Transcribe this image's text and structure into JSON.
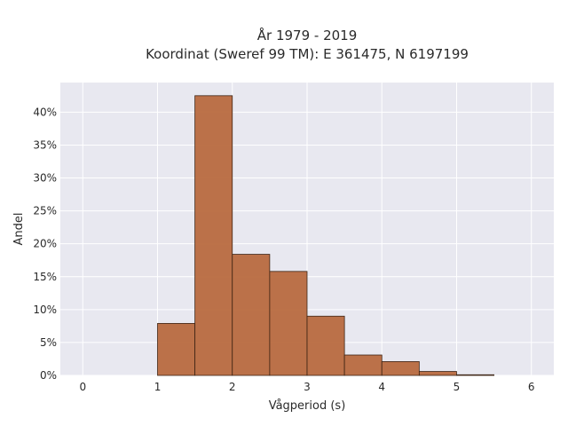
{
  "chart_data": {
    "type": "bar",
    "title_line1": "År 1979 - 2019",
    "title_line2": "Koordinat (Sweref 99 TM): E 361475, N 6197199",
    "xlabel": "Vågperiod (s)",
    "ylabel": "Andel",
    "xlim": [
      -0.3,
      6.3
    ],
    "ylim": [
      0,
      44.5
    ],
    "x_ticks": [
      0,
      1,
      2,
      3,
      4,
      5,
      6
    ],
    "x_tick_labels": [
      "0",
      "1",
      "2",
      "3",
      "4",
      "5",
      "6"
    ],
    "y_ticks": [
      0,
      5,
      10,
      15,
      20,
      25,
      30,
      35,
      40
    ],
    "y_tick_labels": [
      "0%",
      "5%",
      "10%",
      "15%",
      "20%",
      "25%",
      "30%",
      "35%",
      "40%"
    ],
    "grid": true,
    "bin_width": 0.5,
    "bins": [
      {
        "x0": 1.0,
        "x1": 1.5,
        "value": 7.9
      },
      {
        "x0": 1.5,
        "x1": 2.0,
        "value": 42.5
      },
      {
        "x0": 2.0,
        "x1": 2.5,
        "value": 18.4
      },
      {
        "x0": 2.5,
        "x1": 3.0,
        "value": 15.8
      },
      {
        "x0": 3.0,
        "x1": 3.5,
        "value": 9.0
      },
      {
        "x0": 3.5,
        "x1": 4.0,
        "value": 3.1
      },
      {
        "x0": 4.0,
        "x1": 4.5,
        "value": 2.1
      },
      {
        "x0": 4.5,
        "x1": 5.0,
        "value": 0.6
      },
      {
        "x0": 5.0,
        "x1": 5.5,
        "value": 0.1
      }
    ],
    "colors": {
      "bar_fill": "#b86a3f",
      "bar_stroke": "#3d2314",
      "plot_bg": "#e8e8f0",
      "grid": "#ffffff"
    }
  }
}
